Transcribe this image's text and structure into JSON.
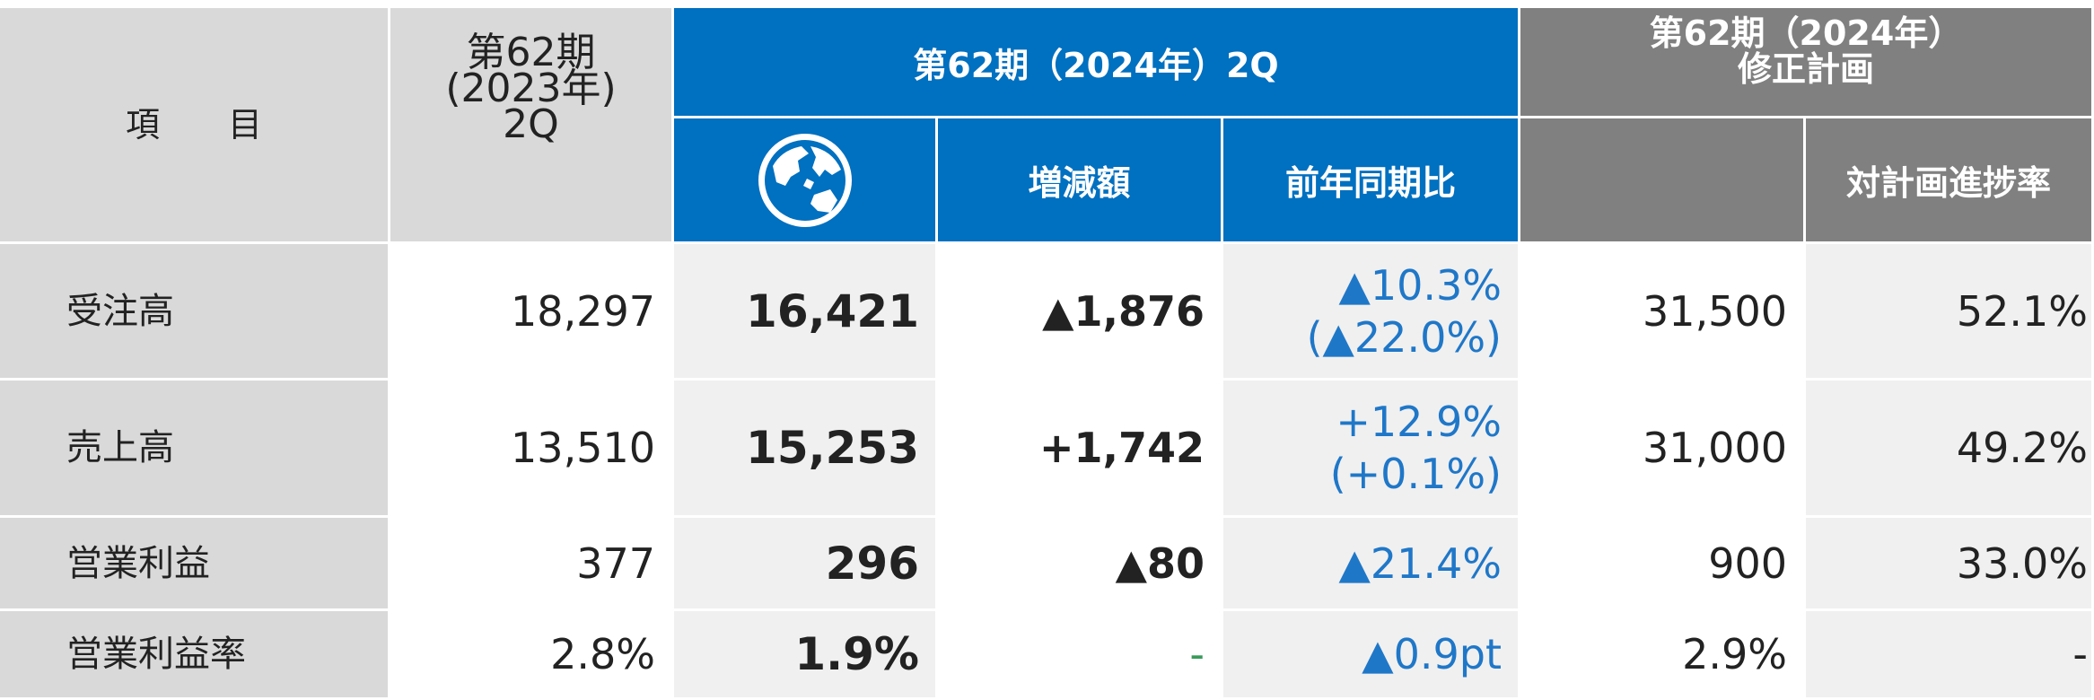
{
  "header": {
    "item": "項　　目",
    "prev": [
      "第62期",
      "(2023年)",
      "2Q"
    ],
    "current": "第62期（2024年）2Q",
    "change": "増減額",
    "yoy": "前年同期比",
    "plan": [
      "第62期（2024年）",
      "修正計画"
    ],
    "progress": "対計画進捗率"
  },
  "rows": [
    {
      "item": "受注高",
      "prev": "18,297",
      "current": "16,421",
      "change": "▲1,876",
      "yoy": [
        "▲10.3%",
        "(▲22.0%)"
      ],
      "plan": "31,500",
      "progress": "52.1%"
    },
    {
      "item": "売上高",
      "prev": "13,510",
      "current": "15,253",
      "change": "+1,742",
      "yoy": [
        "+12.9%",
        "(+0.1%)"
      ],
      "plan": "31,000",
      "progress": "49.2%"
    },
    {
      "item": "営業利益",
      "prev": "377",
      "current": "296",
      "change": "▲80",
      "yoy": [
        "▲21.4%"
      ],
      "plan": "900",
      "progress": "33.0%"
    },
    {
      "item": "営業利益率",
      "prev": "2.8%",
      "current": "1.9%",
      "change": "-",
      "yoy": [
        "▲0.9pt"
      ],
      "plan": "2.9%",
      "progress": "-"
    }
  ]
}
